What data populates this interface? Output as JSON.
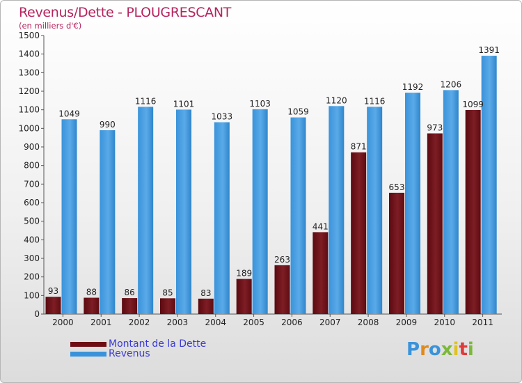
{
  "title": "Revenus/Dette - PLOUGRESCANT",
  "subtitle": "(en milliers d'€)",
  "colors": {
    "title": "#b5245f",
    "debt": "#6f0d14",
    "revenue": "#3a93da",
    "legend_text": "#3b3bd1"
  },
  "logo": {
    "text": "Proxiti",
    "letter_colors": [
      "#3a93da",
      "#e08a1e",
      "#3a93da",
      "#7cb83a",
      "#e0c21e",
      "#e03a3a",
      "#7cb83a"
    ]
  },
  "legend": [
    {
      "label": "Montant de la Dette",
      "color": "#6f0d14"
    },
    {
      "label": "Revenus",
      "color": "#3a93da"
    }
  ],
  "chart_data": {
    "type": "bar",
    "categories": [
      "2000",
      "2001",
      "2002",
      "2003",
      "2004",
      "2005",
      "2006",
      "2007",
      "2008",
      "2009",
      "2010",
      "2011"
    ],
    "series": [
      {
        "name": "Montant de la Dette",
        "values": [
          93,
          88,
          86,
          85,
          83,
          189,
          263,
          441,
          871,
          653,
          973,
          1099
        ]
      },
      {
        "name": "Revenus",
        "values": [
          1049,
          990,
          1116,
          1101,
          1033,
          1103,
          1059,
          1120,
          1116,
          1192,
          1206,
          1391
        ]
      }
    ],
    "ylim": [
      0,
      1500
    ],
    "yticks": [
      0,
      100,
      200,
      300,
      400,
      500,
      600,
      700,
      800,
      900,
      1000,
      1100,
      1200,
      1300,
      1400,
      1500
    ],
    "grid": false,
    "legend_position": "bottom-left"
  }
}
